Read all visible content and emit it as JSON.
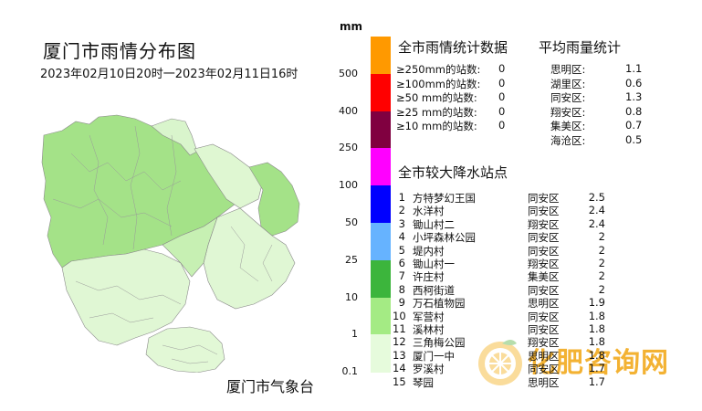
{
  "map": {
    "title": "厦门市雨情分布图",
    "period": "2023年02月10日20时一2023年02月11日16时",
    "agency": "厦门市气象台"
  },
  "legend": {
    "unit": "mm",
    "labels": [
      "500",
      "400",
      "250",
      "100",
      "50",
      "25",
      "10",
      "1",
      "0.1"
    ],
    "colors": [
      "#ff9900",
      "#ff0000",
      "#800040",
      "#ff00ff",
      "#0000ff",
      "#66b3ff",
      "#3cb53c",
      "#a4eb84",
      "#e6fbdc"
    ]
  },
  "city_stats": {
    "title": "全市雨情统计数据",
    "rows": [
      {
        "label": "≥250mm的站数:",
        "value": "0"
      },
      {
        "label": "≥100mm的站数:",
        "value": "0"
      },
      {
        "label": "≥50 mm的站数:",
        "value": "0"
      },
      {
        "label": "≥25 mm的站数:",
        "value": "0"
      },
      {
        "label": "≥10 mm的站数:",
        "value": "0"
      }
    ]
  },
  "district_avg": {
    "title": "平均雨量统计",
    "rows": [
      {
        "district": "思明区:",
        "value": "1.1"
      },
      {
        "district": "湖里区:",
        "value": "0.6"
      },
      {
        "district": "同安区:",
        "value": "1.3"
      },
      {
        "district": "翔安区:",
        "value": "0.8"
      },
      {
        "district": "集美区:",
        "value": "0.7"
      },
      {
        "district": "海沧区:",
        "value": "0.5"
      }
    ]
  },
  "stations": {
    "title": "全市较大降水站点",
    "rows": [
      {
        "rank": "1",
        "name": "方特梦幻王国",
        "district": "同安区",
        "value": "2.5"
      },
      {
        "rank": "2",
        "name": "水洋村",
        "district": "同安区",
        "value": "2.4"
      },
      {
        "rank": "3",
        "name": "锄山村二",
        "district": "翔安区",
        "value": "2.4"
      },
      {
        "rank": "4",
        "name": "小坪森林公园",
        "district": "同安区",
        "value": "2"
      },
      {
        "rank": "5",
        "name": "堤内村",
        "district": "同安区",
        "value": "2"
      },
      {
        "rank": "6",
        "name": "锄山村一",
        "district": "翔安区",
        "value": "2"
      },
      {
        "rank": "7",
        "name": "许庄村",
        "district": "集美区",
        "value": "2"
      },
      {
        "rank": "8",
        "name": "西柯街道",
        "district": "同安区",
        "value": "2"
      },
      {
        "rank": "9",
        "name": "万石植物园",
        "district": "思明区",
        "value": "1.9"
      },
      {
        "rank": "10",
        "name": "军营村",
        "district": "同安区",
        "value": "1.8"
      },
      {
        "rank": "11",
        "name": "溪林村",
        "district": "同安区",
        "value": "1.8"
      },
      {
        "rank": "12",
        "name": "三角梅公园",
        "district": "翔安区",
        "value": "1.8"
      },
      {
        "rank": "13",
        "name": "厦门一中",
        "district": "思明区",
        "value": "1.8"
      },
      {
        "rank": "14",
        "name": "罗溪村",
        "district": "同安区",
        "value": "1.7"
      },
      {
        "rank": "15",
        "name": "琴园",
        "district": "思明区",
        "value": "1.7"
      }
    ]
  },
  "watermark": {
    "text": "化肥咨询网"
  }
}
